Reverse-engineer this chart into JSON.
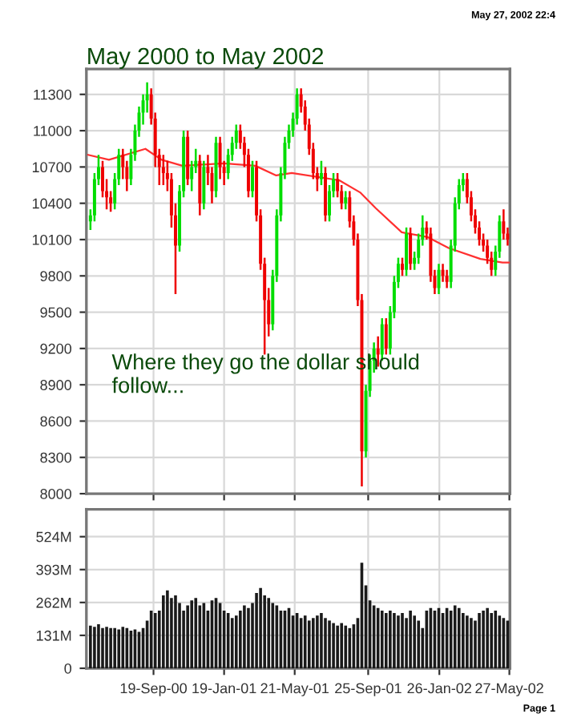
{
  "chart_data": [
    {
      "type": "candlestick",
      "title": "May 2000 to May 2002",
      "annotations": [
        "Where they go the dollar should follow...",
        "May 27, 2002 22:4"
      ],
      "x": [
        "2000-06-02",
        "2000-06-09",
        "2000-06-16",
        "2000-06-23",
        "2000-06-30",
        "2000-07-07",
        "2000-07-14",
        "2000-07-21",
        "2000-07-28",
        "2000-08-04",
        "2000-08-11",
        "2000-08-18",
        "2000-08-25",
        "2000-09-01",
        "2000-09-08",
        "2000-09-15",
        "2000-09-22",
        "2000-09-29",
        "2000-10-06",
        "2000-10-13",
        "2000-10-20",
        "2000-10-27",
        "2000-11-03",
        "2000-11-10",
        "2000-11-17",
        "2000-11-24",
        "2000-12-01",
        "2000-12-08",
        "2000-12-15",
        "2000-12-22",
        "2000-12-29",
        "2001-01-05",
        "2001-01-12",
        "2001-01-19",
        "2001-01-26",
        "2001-02-02",
        "2001-02-09",
        "2001-02-16",
        "2001-02-23",
        "2001-03-02",
        "2001-03-09",
        "2001-03-16",
        "2001-03-23",
        "2001-03-30",
        "2001-04-06",
        "2001-04-13",
        "2001-04-20",
        "2001-04-27",
        "2001-05-04",
        "2001-05-11",
        "2001-05-18",
        "2001-05-25",
        "2001-06-01",
        "2001-06-08",
        "2001-06-15",
        "2001-06-22",
        "2001-06-29",
        "2001-07-06",
        "2001-07-13",
        "2001-07-20",
        "2001-07-27",
        "2001-08-03",
        "2001-08-10",
        "2001-08-17",
        "2001-08-24",
        "2001-08-31",
        "2001-09-07",
        "2001-09-14",
        "2001-09-21",
        "2001-09-28",
        "2001-10-05",
        "2001-10-12",
        "2001-10-19",
        "2001-10-26",
        "2001-11-02",
        "2001-11-09",
        "2001-11-16",
        "2001-11-23",
        "2001-11-30",
        "2001-12-07",
        "2001-12-14",
        "2001-12-21",
        "2001-12-28",
        "2002-01-04",
        "2002-01-11",
        "2002-01-18",
        "2002-01-25",
        "2002-02-01",
        "2002-02-08",
        "2002-02-15",
        "2002-02-22",
        "2002-03-01",
        "2002-03-08",
        "2002-03-15",
        "2002-03-22",
        "2002-03-29",
        "2002-04-05",
        "2002-04-12",
        "2002-04-19",
        "2002-04-26",
        "2002-05-03",
        "2002-05-10",
        "2002-05-17",
        "2002-05-24"
      ],
      "ohlc": [
        [
          10250,
          10350,
          10180,
          10300
        ],
        [
          10300,
          10650,
          10250,
          10600
        ],
        [
          10600,
          10800,
          10550,
          10700
        ],
        [
          10700,
          10750,
          10450,
          10500
        ],
        [
          10500,
          10600,
          10350,
          10450
        ],
        [
          10450,
          10500,
          10330,
          10400
        ],
        [
          10400,
          10650,
          10350,
          10600
        ],
        [
          10600,
          10850,
          10550,
          10800
        ],
        [
          10800,
          10850,
          10600,
          10700
        ],
        [
          10700,
          10750,
          10500,
          10600
        ],
        [
          10600,
          10850,
          10550,
          10800
        ],
        [
          10800,
          11050,
          10750,
          11000
        ],
        [
          11000,
          11200,
          10950,
          11150
        ],
        [
          11150,
          11300,
          11050,
          11250
        ],
        [
          11250,
          11400,
          11150,
          11300
        ],
        [
          11300,
          11350,
          11050,
          11100
        ],
        [
          11100,
          11150,
          10700,
          10800
        ],
        [
          10800,
          10850,
          10550,
          10700
        ],
        [
          10700,
          10800,
          10550,
          10650
        ],
        [
          10650,
          10750,
          10500,
          10600
        ],
        [
          10600,
          10650,
          10200,
          10300
        ],
        [
          10300,
          10400,
          9650,
          10050
        ],
        [
          10050,
          10550,
          10000,
          10500
        ],
        [
          10500,
          11000,
          10450,
          10950
        ],
        [
          10950,
          11000,
          10550,
          10600
        ],
        [
          10600,
          10750,
          10500,
          10700
        ],
        [
          10700,
          10850,
          10650,
          10750
        ],
        [
          10750,
          10800,
          10300,
          10400
        ],
        [
          10400,
          10750,
          10350,
          10700
        ],
        [
          10700,
          10800,
          10550,
          10650
        ],
        [
          10650,
          10700,
          10400,
          10500
        ],
        [
          10500,
          10950,
          10450,
          10900
        ],
        [
          10900,
          10950,
          10600,
          10700
        ],
        [
          10700,
          10750,
          10550,
          10650
        ],
        [
          10650,
          10850,
          10600,
          10800
        ],
        [
          10800,
          10950,
          10750,
          10900
        ],
        [
          10900,
          11050,
          10850,
          11000
        ],
        [
          11000,
          11050,
          10850,
          10900
        ],
        [
          10900,
          10950,
          10700,
          10800
        ],
        [
          10800,
          10850,
          10450,
          10500
        ],
        [
          10500,
          10750,
          10450,
          10700
        ],
        [
          10700,
          10750,
          10250,
          10300
        ],
        [
          10300,
          10350,
          9850,
          9900
        ],
        [
          9900,
          9950,
          9150,
          9600
        ],
        [
          9600,
          9700,
          9300,
          9400
        ],
        [
          9400,
          9850,
          9350,
          9800
        ],
        [
          9800,
          10350,
          9750,
          10300
        ],
        [
          10300,
          10700,
          10250,
          10650
        ],
        [
          10650,
          10950,
          10600,
          10900
        ],
        [
          10900,
          11050,
          10850,
          11000
        ],
        [
          11000,
          11150,
          10950,
          11100
        ],
        [
          11100,
          11350,
          11050,
          11300
        ],
        [
          11300,
          11350,
          11150,
          11200
        ],
        [
          11200,
          11250,
          11000,
          11050
        ],
        [
          11050,
          11100,
          10800,
          10850
        ],
        [
          10850,
          10900,
          10600,
          10650
        ],
        [
          10650,
          10700,
          10500,
          10600
        ],
        [
          10600,
          10750,
          10550,
          10650
        ],
        [
          10650,
          10700,
          10250,
          10300
        ],
        [
          10300,
          10550,
          10250,
          10500
        ],
        [
          10500,
          10650,
          10450,
          10600
        ],
        [
          10600,
          10650,
          10450,
          10500
        ],
        [
          10500,
          10550,
          10350,
          10400
        ],
        [
          10400,
          10500,
          10350,
          10450
        ],
        [
          10450,
          10500,
          10200,
          10250
        ],
        [
          10250,
          10300,
          10050,
          10100
        ],
        [
          10100,
          10150,
          9550,
          9600
        ],
        [
          9600,
          9650,
          8060,
          8350
        ],
        [
          8350,
          8900,
          8300,
          8850
        ],
        [
          8850,
          9150,
          8800,
          9100
        ],
        [
          9100,
          9250,
          9000,
          9200
        ],
        [
          9200,
          9300,
          9050,
          9150
        ],
        [
          9150,
          9450,
          9100,
          9400
        ],
        [
          9400,
          9450,
          9150,
          9200
        ],
        [
          9200,
          9550,
          9150,
          9500
        ],
        [
          9500,
          9800,
          9450,
          9750
        ],
        [
          9750,
          9950,
          9700,
          9900
        ],
        [
          9900,
          9950,
          9800,
          9850
        ],
        [
          9850,
          10200,
          9800,
          10150
        ],
        [
          10150,
          10200,
          9850,
          9900
        ],
        [
          9900,
          10000,
          9850,
          9950
        ],
        [
          9950,
          10150,
          9900,
          10100
        ],
        [
          10100,
          10300,
          10050,
          10200
        ],
        [
          10200,
          10250,
          10100,
          10150
        ],
        [
          10150,
          10200,
          9750,
          9800
        ],
        [
          9800,
          9850,
          9650,
          9700
        ],
        [
          9700,
          9900,
          9650,
          9850
        ],
        [
          9850,
          9900,
          9750,
          9800
        ],
        [
          9800,
          9850,
          9700,
          9750
        ],
        [
          9750,
          10100,
          9700,
          10050
        ],
        [
          10050,
          10450,
          10000,
          10400
        ],
        [
          10400,
          10600,
          10350,
          10550
        ],
        [
          10550,
          10650,
          10500,
          10600
        ],
        [
          10600,
          10650,
          10400,
          10450
        ],
        [
          10450,
          10500,
          10250,
          10300
        ],
        [
          10300,
          10350,
          10150,
          10200
        ],
        [
          10200,
          10250,
          10050,
          10100
        ],
        [
          10100,
          10150,
          10000,
          10050
        ],
        [
          10050,
          10100,
          9900,
          9950
        ],
        [
          9950,
          10000,
          9800,
          9850
        ],
        [
          9850,
          10050,
          9800,
          10000
        ],
        [
          10000,
          10300,
          9950,
          10250
        ],
        [
          10250,
          10350,
          10100,
          10150
        ],
        [
          10150,
          10200,
          10050,
          10100
        ]
      ],
      "colors": [
        "#00dd00",
        "#00dd00",
        "#00dd00",
        "#ee0000",
        "#ee0000",
        "#ee0000",
        "#00dd00",
        "#00dd00",
        "#ee0000",
        "#ee0000",
        "#00dd00",
        "#00dd00",
        "#00dd00",
        "#00dd00",
        "#00dd00",
        "#ee0000",
        "#ee0000",
        "#ee0000",
        "#ee0000",
        "#ee0000",
        "#ee0000",
        "#ee0000",
        "#00dd00",
        "#00dd00",
        "#ee0000",
        "#00dd00",
        "#00dd00",
        "#ee0000",
        "#00dd00",
        "#ee0000",
        "#ee0000",
        "#00dd00",
        "#ee0000",
        "#ee0000",
        "#00dd00",
        "#00dd00",
        "#00dd00",
        "#ee0000",
        "#ee0000",
        "#ee0000",
        "#00dd00",
        "#ee0000",
        "#ee0000",
        "#ee0000",
        "#ee0000",
        "#00dd00",
        "#00dd00",
        "#00dd00",
        "#00dd00",
        "#00dd00",
        "#00dd00",
        "#00dd00",
        "#ee0000",
        "#ee0000",
        "#ee0000",
        "#ee0000",
        "#ee0000",
        "#00dd00",
        "#ee0000",
        "#00dd00",
        "#00dd00",
        "#ee0000",
        "#ee0000",
        "#00dd00",
        "#ee0000",
        "#ee0000",
        "#ee0000",
        "#ee0000",
        "#00dd00",
        "#00dd00",
        "#00dd00",
        "#ee0000",
        "#00dd00",
        "#ee0000",
        "#00dd00",
        "#00dd00",
        "#00dd00",
        "#ee0000",
        "#00dd00",
        "#ee0000",
        "#00dd00",
        "#00dd00",
        "#00dd00",
        "#ee0000",
        "#ee0000",
        "#ee0000",
        "#00dd00",
        "#ee0000",
        "#ee0000",
        "#00dd00",
        "#00dd00",
        "#00dd00",
        "#00dd00",
        "#ee0000",
        "#ee0000",
        "#ee0000",
        "#ee0000",
        "#ee0000",
        "#ee0000",
        "#ee0000",
        "#00dd00",
        "#00dd00",
        "#ee0000",
        "#ee0000"
      ],
      "series": [
        {
          "type": "line",
          "color": "#ff3030",
          "x": [
            "2000-05-29",
            "2000-07-04",
            "2000-09-05",
            "2000-10-03",
            "2000-11-08",
            "2001-01-19",
            "2001-03-14",
            "2001-04-19",
            "2001-05-16",
            "2001-08-06",
            "2001-09-11",
            "2001-10-08",
            "2001-11-22",
            "2002-01-06",
            "2002-02-11",
            "2002-04-07",
            "2002-05-15",
            "2002-05-27"
          ],
          "values": [
            10800,
            10760,
            10850,
            10760,
            10710,
            10730,
            10710,
            10630,
            10650,
            10590,
            10490,
            10360,
            10160,
            10120,
            10030,
            9940,
            9910,
            9910
          ]
        }
      ],
      "xlim": [
        "2000-05-26",
        "2002-05-28"
      ],
      "ylim": [
        8000,
        11510
      ],
      "yticks": [
        8000,
        8300,
        8600,
        8900,
        9200,
        9500,
        9800,
        10100,
        10400,
        10700,
        11000,
        11300
      ],
      "grid": true,
      "tick_labels": "y"
    },
    {
      "type": "bar",
      "annotations": [
        "Page 1"
      ],
      "x": [
        "2000-06-02",
        "2000-06-09",
        "2000-06-16",
        "2000-06-23",
        "2000-06-30",
        "2000-07-07",
        "2000-07-14",
        "2000-07-21",
        "2000-07-28",
        "2000-08-04",
        "2000-08-11",
        "2000-08-18",
        "2000-08-25",
        "2000-09-01",
        "2000-09-08",
        "2000-09-15",
        "2000-09-22",
        "2000-09-29",
        "2000-10-06",
        "2000-10-13",
        "2000-10-20",
        "2000-10-27",
        "2000-11-03",
        "2000-11-10",
        "2000-11-17",
        "2000-11-24",
        "2000-12-01",
        "2000-12-08",
        "2000-12-15",
        "2000-12-22",
        "2000-12-29",
        "2001-01-05",
        "2001-01-12",
        "2001-01-19",
        "2001-01-26",
        "2001-02-02",
        "2001-02-09",
        "2001-02-16",
        "2001-02-23",
        "2001-03-02",
        "2001-03-09",
        "2001-03-16",
        "2001-03-23",
        "2001-03-30",
        "2001-04-06",
        "2001-04-13",
        "2001-04-20",
        "2001-04-27",
        "2001-05-04",
        "2001-05-11",
        "2001-05-18",
        "2001-05-25",
        "2001-06-01",
        "2001-06-08",
        "2001-06-15",
        "2001-06-22",
        "2001-06-29",
        "2001-07-06",
        "2001-07-13",
        "2001-07-20",
        "2001-07-27",
        "2001-08-03",
        "2001-08-10",
        "2001-08-17",
        "2001-08-24",
        "2001-08-31",
        "2001-09-07",
        "2001-09-14",
        "2001-09-21",
        "2001-09-28",
        "2001-10-05",
        "2001-10-12",
        "2001-10-19",
        "2001-10-26",
        "2001-11-02",
        "2001-11-09",
        "2001-11-16",
        "2001-11-23",
        "2001-11-30",
        "2001-12-07",
        "2001-12-14",
        "2001-12-21",
        "2001-12-28",
        "2002-01-04",
        "2002-01-11",
        "2002-01-18",
        "2002-01-25",
        "2002-02-01",
        "2002-02-08",
        "2002-02-15",
        "2002-02-22",
        "2002-03-01",
        "2002-03-08",
        "2002-03-15",
        "2002-03-22",
        "2002-03-29",
        "2002-04-05",
        "2002-04-12",
        "2002-04-19",
        "2002-04-26",
        "2002-05-03",
        "2002-05-10",
        "2002-05-17",
        "2002-05-24"
      ],
      "values": [
        170,
        165,
        175,
        160,
        165,
        160,
        160,
        155,
        165,
        160,
        150,
        155,
        145,
        160,
        190,
        230,
        220,
        230,
        290,
        310,
        280,
        290,
        260,
        230,
        250,
        270,
        280,
        250,
        260,
        230,
        270,
        280,
        260,
        230,
        220,
        200,
        210,
        230,
        250,
        240,
        260,
        300,
        320,
        290,
        280,
        260,
        250,
        230,
        230,
        240,
        210,
        220,
        200,
        210,
        190,
        200,
        210,
        220,
        200,
        190,
        180,
        170,
        180,
        170,
        160,
        175,
        200,
        420,
        330,
        270,
        250,
        240,
        230,
        220,
        230,
        220,
        210,
        220,
        200,
        230,
        210,
        190,
        160,
        230,
        240,
        230,
        240,
        220,
        240,
        230,
        250,
        240,
        220,
        210,
        200,
        190,
        220,
        230,
        240,
        220,
        230,
        210,
        200,
        190
      ],
      "color": "#1a1a1a",
      "xlim": [
        "2000-05-26",
        "2002-05-28"
      ],
      "xticks": [
        {
          "value": "2000-09-19",
          "label": "19-Sep-00"
        },
        {
          "value": "2001-01-19",
          "label": "19-Jan-01"
        },
        {
          "value": "2001-05-21",
          "label": "21-May-01"
        },
        {
          "value": "2001-09-25",
          "label": "25-Sep-01"
        },
        {
          "value": "2002-01-26",
          "label": "26-Jan-02"
        },
        {
          "value": "2002-05-27",
          "label": "27-May-02"
        }
      ],
      "ylim": [
        0,
        633
      ],
      "yticks": [
        0,
        {
          "value": 131,
          "label": "131M"
        },
        {
          "value": 262,
          "label": "262M"
        },
        {
          "value": 393,
          "label": "393M"
        },
        {
          "value": 524,
          "label": "524M"
        }
      ],
      "grid": true
    }
  ]
}
